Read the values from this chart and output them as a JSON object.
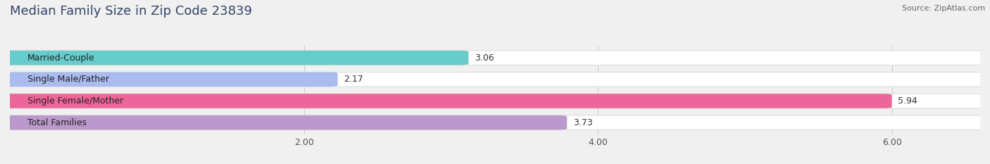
{
  "title": "Median Family Size in Zip Code 23839",
  "source": "Source: ZipAtlas.com",
  "categories": [
    "Married-Couple",
    "Single Male/Father",
    "Single Female/Mother",
    "Total Families"
  ],
  "values": [
    3.06,
    2.17,
    5.94,
    3.73
  ],
  "bar_colors": [
    "#66cccc",
    "#aabbee",
    "#ee6699",
    "#bb99cc"
  ],
  "xlim_max": 6.6,
  "xticks": [
    2.0,
    4.0,
    6.0
  ],
  "xtick_labels": [
    "2.00",
    "4.00",
    "6.00"
  ],
  "label_fontsize": 9,
  "title_fontsize": 13,
  "source_fontsize": 8,
  "value_fontsize": 9,
  "background_color": "#f0f0f0",
  "bar_bg_color": "#ffffff",
  "bar_height": 0.55,
  "bar_gap": 1.0
}
